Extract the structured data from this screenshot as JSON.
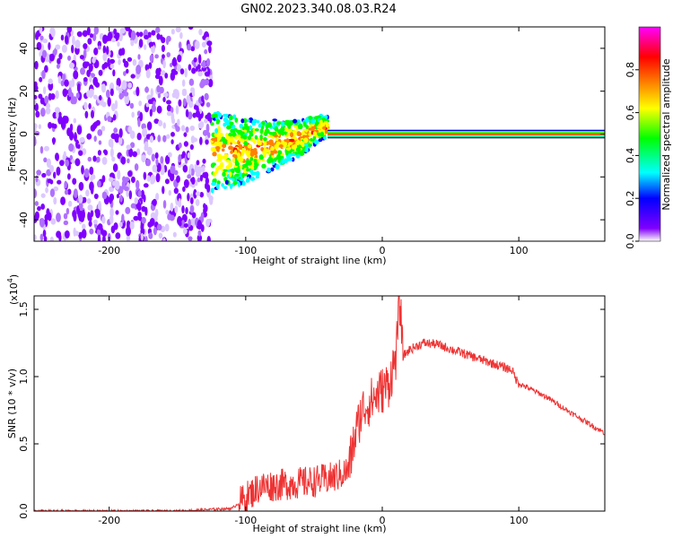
{
  "figure": {
    "title": "GN02.2023.340.08.03.R24"
  },
  "chart_data": [
    {
      "type": "heatmap",
      "xlabel": "Height of straight line (km)",
      "ylabel": "Frequency (Hz)",
      "xlim": [
        -255,
        163
      ],
      "ylim": [
        -50,
        50
      ],
      "x_ticks": [
        -200,
        -100,
        0,
        100
      ],
      "y_ticks": [
        -40,
        -20,
        0,
        20,
        40
      ],
      "regions": [
        {
          "x_range": [
            -255,
            -125
          ],
          "description_level": "scattered low amplitude noise"
        },
        {
          "x_range": [
            -125,
            -40
          ],
          "frequency_center_trend": [
            [
              -120,
              -8
            ],
            [
              -100,
              -8
            ],
            [
              -80,
              -5
            ],
            [
              -60,
              -2
            ],
            [
              -45,
              3
            ]
          ]
        },
        {
          "x_range": [
            -40,
            163
          ],
          "frequency_center": 0,
          "amplitude": 1.0
        }
      ],
      "colorbar": {
        "label": "Normalized spectral amplitude",
        "range": [
          0.0,
          1.0
        ],
        "ticks": [
          "0.0",
          "0.2",
          "0.4",
          "0.6",
          "0.8"
        ],
        "colors": [
          "#ffffff",
          "#8000ff",
          "#0000ff",
          "#00ffff",
          "#00ff00",
          "#ffff00",
          "#ff8000",
          "#ff0000",
          "#ff00ff"
        ]
      }
    },
    {
      "type": "line",
      "xlabel": "Height of straight line (km)",
      "ylabel": "SNR (10 * v/v)",
      "scale_label": "(x10",
      "scale_exp": "4",
      "scale_close": ")",
      "xlim": [
        -255,
        163
      ],
      "ylim": [
        0.0,
        1.6
      ],
      "x_ticks": [
        -200,
        -100,
        0,
        100
      ],
      "y_ticks": [
        "0.0",
        "0.5",
        "1.0",
        "1.5"
      ],
      "series_color": "#ee3333",
      "x": [
        -255,
        -200,
        -150,
        -110,
        -100,
        -90,
        -70,
        -50,
        -35,
        -25,
        -20,
        -15,
        -10,
        -5,
        0,
        5,
        10,
        13,
        15,
        20,
        30,
        40,
        60,
        80,
        95,
        98,
        100,
        120,
        140,
        163
      ],
      "y": [
        0.0,
        0.0,
        0.0,
        0.02,
        0.1,
        0.18,
        0.2,
        0.22,
        0.25,
        0.3,
        0.55,
        0.75,
        0.8,
        0.85,
        0.9,
        0.95,
        1.15,
        1.58,
        1.15,
        1.2,
        1.25,
        1.24,
        1.17,
        1.1,
        1.05,
        0.98,
        0.95,
        0.85,
        0.72,
        0.58
      ]
    }
  ]
}
